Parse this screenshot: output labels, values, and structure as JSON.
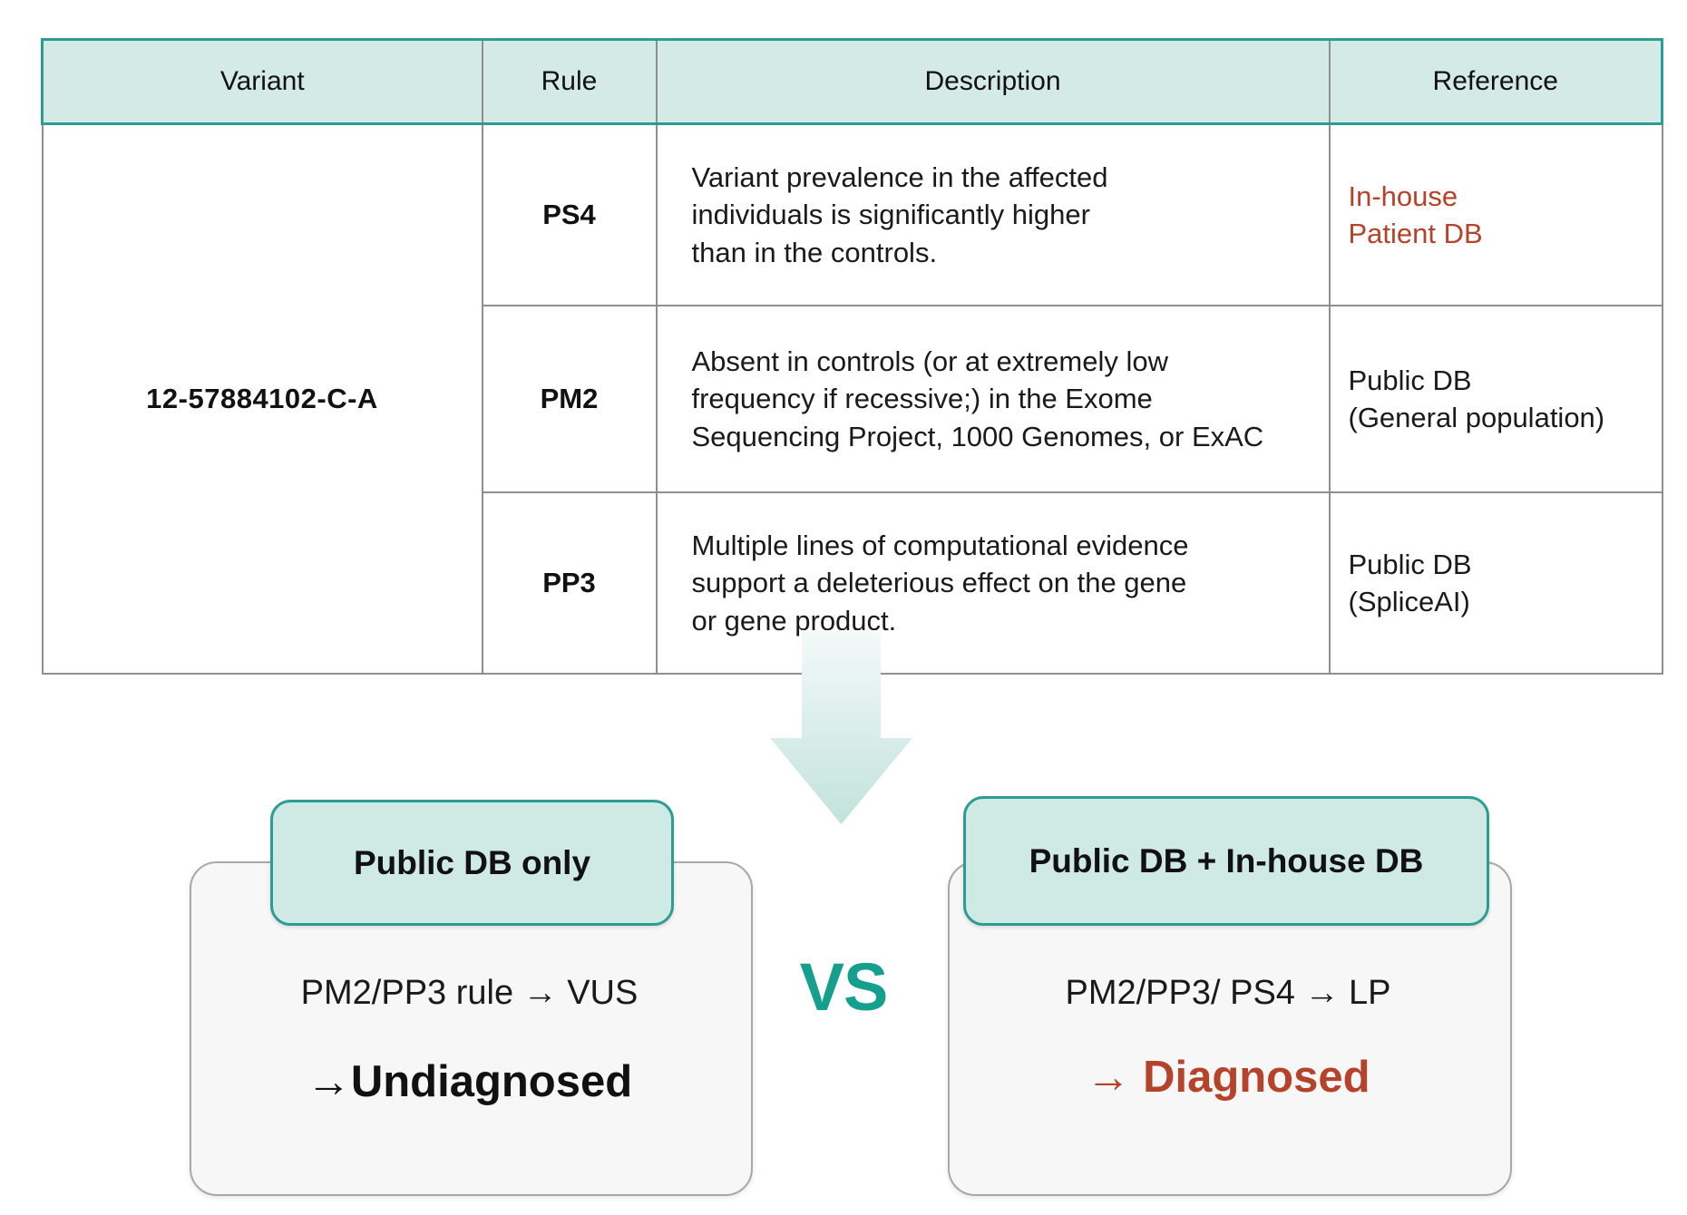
{
  "table": {
    "headers": [
      "Variant",
      "Rule",
      "Description",
      "Reference"
    ],
    "variant": "12-57884102-C-A",
    "rows": [
      {
        "rule": "PS4",
        "description": "Variant prevalence in the affected\nindividuals is significantly higher\nthan in the controls.",
        "reference": "In-house\nPatient DB"
      },
      {
        "rule": "PM2",
        "description": "Absent in controls (or at extremely low\nfrequency if recessive;) in the Exome\nSequencing Project, 1000 Genomes, or ExAC",
        "reference": "Public DB\n(General population)"
      },
      {
        "rule": "PP3",
        "description": "Multiple lines of computational evidence\nsupport a deleterious effect on the gene\nor gene product.",
        "reference": "Public DB\n(SpliceAI)"
      }
    ]
  },
  "comparison": {
    "vs_label": "VS",
    "left": {
      "badge": "Public DB only",
      "line1": "PM2/PP3 rule → VUS",
      "line2": "→Undiagnosed"
    },
    "right": {
      "badge": "Public DB + In-house DB",
      "line1": "PM2/PP3/ PS4 → LP",
      "line2": "→ Diagnosed"
    }
  },
  "colors": {
    "teal_border": "#2e9c92",
    "header_fill": "#d3eae6",
    "badge_fill": "#cfe9e4",
    "panel_fill": "#f7f7f7",
    "grid_gray": "#8f8f8f",
    "accent_red": "#b5432a",
    "vs_teal": "#14a08c",
    "arrow_gradient_top": "#f4faf9",
    "arrow_gradient_bottom": "#c3e2dc"
  }
}
